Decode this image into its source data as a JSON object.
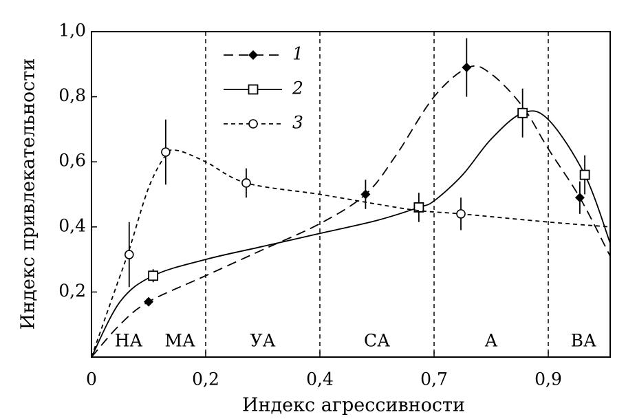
{
  "chart_data": {
    "type": "line",
    "xlabel": "Индекс агрессивности",
    "ylabel": "Индекс привлекательности",
    "xlim": [
      0,
      1.0
    ],
    "ylim": [
      0,
      1.0
    ],
    "xticks": [
      0,
      {
        "value": 0.2,
        "label": "0,2"
      },
      {
        "value": 0.4,
        "label": "0,4"
      },
      {
        "value": 0.7,
        "label": "0,7"
      },
      {
        "value": 0.9,
        "label": "0,9"
      }
    ],
    "yticks": [
      {
        "value": 0.2,
        "label": "0,2"
      },
      {
        "value": 0.4,
        "label": "0,4"
      },
      {
        "value": 0.6,
        "label": "0,6"
      },
      {
        "value": 0.8,
        "label": "0,8"
      },
      {
        "value": 1.0,
        "label": "1,0"
      }
    ],
    "grid": true,
    "legend": "upper-left",
    "annotations": [
      {
        "text": "НА",
        "x": 0.065
      },
      {
        "text": "МА",
        "x": 0.155
      },
      {
        "text": "УА",
        "x": 0.3
      },
      {
        "text": "СА",
        "x": 0.55
      },
      {
        "text": "А",
        "x": 0.8
      },
      {
        "text": "ВА",
        "x": 0.957
      }
    ],
    "series": [
      {
        "name": "1",
        "color": "#000",
        "marker": "diamond",
        "dash": "14 8",
        "x": [
          0.1,
          0.52,
          0.757,
          0.951
        ],
        "values": [
          0.17,
          0.5,
          0.89,
          0.49
        ],
        "errors": [
          0.01,
          0.045,
          0.09,
          0.05
        ],
        "fit_x": [
          0,
          0.05,
          0.1,
          0.2,
          0.3,
          0.4,
          0.52,
          0.6,
          0.7,
          0.76,
          0.8,
          0.855,
          0.9,
          0.951,
          1.0
        ],
        "fit_y": [
          0,
          0.1,
          0.17,
          0.25,
          0.33,
          0.41,
          0.5,
          0.62,
          0.8,
          0.89,
          0.87,
          0.77,
          0.64,
          0.49,
          0.31
        ]
      },
      {
        "name": "2",
        "color": "#000",
        "marker": "square",
        "dash": "none",
        "x": [
          0.108,
          0.66,
          0.855,
          0.959
        ],
        "values": [
          0.25,
          0.46,
          0.75,
          0.56
        ],
        "errors": [
          0.02,
          0.045,
          0.075,
          0.06
        ],
        "fit_x": [
          0,
          0.05,
          0.108,
          0.2,
          0.3,
          0.4,
          0.55,
          0.66,
          0.7,
          0.75,
          0.8,
          0.855,
          0.9,
          0.959,
          1.0
        ],
        "fit_y": [
          0,
          0.17,
          0.25,
          0.3,
          0.34,
          0.38,
          0.42,
          0.46,
          0.48,
          0.56,
          0.67,
          0.75,
          0.73,
          0.56,
          0.35
        ]
      },
      {
        "name": "3",
        "color": "#000",
        "marker": "circle",
        "dash": "6 5",
        "x": [
          0.066,
          0.13,
          0.271,
          0.747
        ],
        "values": [
          0.315,
          0.63,
          0.535,
          0.44
        ],
        "errors": [
          0.1,
          0.1,
          0.045,
          0.05
        ],
        "fit_x": [
          0,
          0.04,
          0.066,
          0.1,
          0.13,
          0.15,
          0.2,
          0.271,
          0.4,
          0.55,
          0.66,
          0.747,
          0.9,
          1.0
        ],
        "fit_y": [
          0,
          0.2,
          0.33,
          0.52,
          0.62,
          0.635,
          0.6,
          0.535,
          0.5,
          0.47,
          0.45,
          0.44,
          0.415,
          0.4
        ]
      }
    ]
  }
}
